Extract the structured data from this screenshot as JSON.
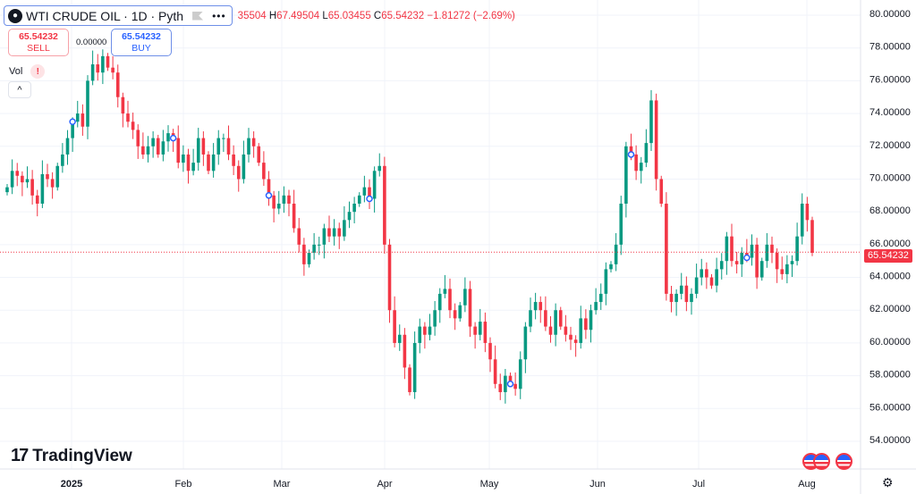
{
  "header": {
    "symbol_icon": "oil-drop-icon",
    "symbol": "WTI CRUDE OIL · 1D · Pyth",
    "more": "•••",
    "ohlc": {
      "open_partial": "35504",
      "h_label": "H",
      "high": "67.49504",
      "l_label": "L",
      "low": "65.03455",
      "c_label": "C",
      "close": "65.54232",
      "change": "−1.81272 (−2.69%)"
    }
  },
  "trade": {
    "sell_price": "65.54232",
    "sell_label": "SELL",
    "spread": "0.00000",
    "buy_price": "65.54232",
    "buy_label": "BUY"
  },
  "volume": {
    "label": "Vol",
    "warning": "!",
    "collapse": "^"
  },
  "logo": {
    "mark": "17",
    "text": "TradingView"
  },
  "current_price": "65.54232",
  "colors": {
    "up": "#089981",
    "down": "#f23645",
    "grid": "#f0f3fa"
  },
  "chart_data": {
    "type": "candlestick",
    "y_ticks": [
      "80.00000",
      "78.00000",
      "76.00000",
      "74.00000",
      "72.00000",
      "70.00000",
      "68.00000",
      "66.00000",
      "64.00000",
      "62.00000",
      "60.00000",
      "58.00000",
      "56.00000",
      "54.00000"
    ],
    "x_ticks": [
      "2025",
      "Feb",
      "Mar",
      "Apr",
      "May",
      "Jun",
      "Jul",
      "Aug"
    ],
    "ylim": [
      53.5,
      80.5
    ],
    "closes": [
      69.5,
      70.5,
      70.2,
      69.8,
      70,
      69,
      68.5,
      70.3,
      70,
      69.5,
      70.8,
      71.5,
      72.5,
      73.5,
      74,
      73.2,
      76,
      77,
      76.5,
      77.5,
      76.8,
      76.5,
      75,
      74,
      73.5,
      73,
      72,
      71.5,
      72,
      72.5,
      71.5,
      72.3,
      72.8,
      72.5,
      71,
      71.5,
      70.5,
      71,
      72.5,
      71.5,
      70.5,
      71.5,
      72.5,
      72.5,
      71.5,
      70.8,
      70,
      71.5,
      72.5,
      72,
      71,
      70,
      69,
      68.2,
      68.5,
      69,
      68.5,
      67,
      66,
      64.8,
      65.5,
      66,
      66,
      67,
      66.5,
      67,
      66.5,
      67.5,
      68,
      68.5,
      69,
      69.5,
      68.8,
      70.5,
      70.8,
      66,
      62,
      60,
      60.5,
      58.5,
      57,
      60,
      61,
      60.5,
      61,
      62,
      63,
      63.3,
      62,
      61.5,
      62.3,
      63.3,
      61,
      60.5,
      61.3,
      60,
      59,
      57.5,
      57,
      58,
      57.5,
      57.2,
      59,
      61,
      62,
      62.5,
      62,
      61,
      60.5,
      62,
      61,
      60.5,
      60.2,
      60,
      61.5,
      60.8,
      62,
      62.5,
      63,
      64.5,
      64.8,
      66,
      68.5,
      72,
      71.5,
      70.5,
      71,
      72.2,
      74.8,
      70,
      68.5,
      63,
      62.5,
      63,
      63.5,
      62.5,
      63,
      64,
      64.5,
      64,
      63.5,
      64.5,
      65,
      66.5,
      65,
      64.8,
      65.5,
      65.2,
      66,
      64,
      65,
      66,
      65.5,
      64.5,
      64.2,
      64.8,
      65,
      66.5,
      68.5,
      67.5,
      65.5
    ],
    "event_markers": [
      13,
      33,
      52,
      72,
      100,
      124,
      147,
      168
    ]
  }
}
